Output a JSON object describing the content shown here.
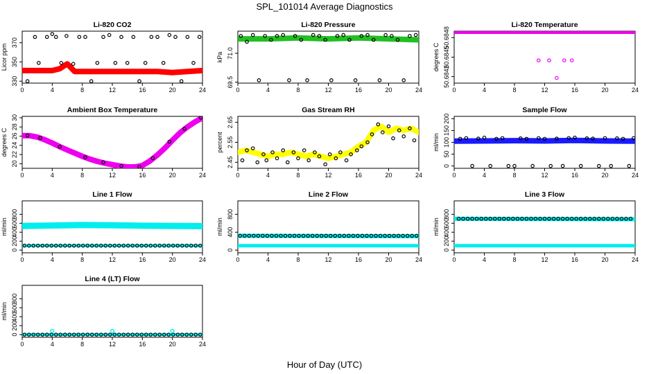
{
  "figure": {
    "title": "SPL_101014  Average Diagnostics",
    "xlabel": "Hour of Day (UTC)"
  },
  "colors": {
    "red": "#ff0000",
    "green": "#22c022",
    "magenta": "#ee00ee",
    "yellow": "#ffff00",
    "blue": "#1a1aff",
    "cyan": "#00eeee",
    "black": "#000000"
  },
  "chart_data": [
    {
      "type": "scatter",
      "title": "Li-820 CO2",
      "ylabel": "Licor ppm",
      "xlim": [
        0,
        24
      ],
      "ylim": [
        328,
        382
      ],
      "xticks": [
        "0",
        "4",
        "8",
        "12",
        "16",
        "20",
        "24"
      ],
      "yticks": [
        "330",
        "350",
        "370"
      ],
      "band": {
        "color": "red",
        "x": [
          0,
          2,
          4,
          5,
          6,
          7,
          8,
          10,
          12,
          14,
          16,
          18,
          20,
          22,
          24
        ],
        "y": [
          341,
          341,
          341,
          343,
          348,
          340,
          340,
          340,
          340,
          340,
          340,
          340,
          339,
          340,
          341
        ]
      },
      "points": {
        "color": "black",
        "x": [
          0.7,
          1.7,
          2.2,
          3.3,
          4.0,
          4.5,
          5.2,
          5.9,
          6.8,
          7.6,
          8.4,
          9.2,
          10.0,
          10.8,
          11.6,
          12.4,
          13.2,
          14.0,
          14.8,
          15.6,
          16.4,
          17.2,
          18.0,
          18.8,
          19.6,
          20.4,
          21.2,
          22.0,
          22.8,
          23.6
        ],
        "y": [
          330,
          376,
          349,
          376,
          379,
          376,
          349,
          377,
          348,
          376,
          376,
          330,
          349,
          376,
          378,
          349,
          376,
          349,
          376,
          330,
          349,
          376,
          376,
          349,
          378,
          376,
          330,
          376,
          349,
          376
        ]
      }
    },
    {
      "type": "scatter",
      "title": "Li-820 Pressure",
      "ylabel": "kPa",
      "xlim": [
        0,
        24
      ],
      "ylim": [
        69.45,
        72.15
      ],
      "xticks": [
        "0",
        "4",
        "8",
        "12",
        "16",
        "20",
        "24"
      ],
      "yticks": [
        "69.5",
        "71.0"
      ],
      "band": {
        "color": "green",
        "x": [
          0,
          4,
          8,
          12,
          16,
          20,
          24
        ],
        "y": [
          71.75,
          71.75,
          71.8,
          71.75,
          71.8,
          71.75,
          71.7
        ]
      },
      "points": {
        "color": "black",
        "x": [
          0.4,
          1.2,
          2.0,
          2.8,
          3.6,
          4.4,
          5.2,
          6.0,
          6.8,
          7.6,
          8.4,
          9.2,
          10.0,
          10.8,
          11.6,
          12.4,
          13.2,
          14.0,
          14.8,
          15.6,
          16.4,
          17.2,
          18.0,
          18.8,
          19.6,
          20.4,
          21.2,
          22.0,
          22.8,
          23.6
        ],
        "y": [
          71.9,
          71.6,
          71.95,
          69.6,
          71.9,
          71.7,
          71.9,
          71.95,
          69.6,
          71.9,
          71.7,
          69.6,
          71.95,
          71.9,
          71.7,
          69.6,
          71.9,
          71.95,
          71.7,
          69.6,
          71.9,
          71.95,
          71.7,
          69.6,
          71.95,
          71.9,
          71.7,
          69.6,
          71.9,
          71.95
        ]
      }
    },
    {
      "type": "scatter",
      "title": "Li-820 Temperature",
      "ylabel": "degrees C",
      "xlim": [
        0,
        24
      ],
      "ylim": [
        50.6841,
        50.6849
      ],
      "xticks": [
        "0",
        "4",
        "8",
        "12",
        "16",
        "20",
        "24"
      ],
      "yticks": [
        "50.6842",
        "50.6845",
        "50.6848"
      ],
      "band": {
        "color": "magenta",
        "x": [
          0,
          24
        ],
        "y": [
          50.6849,
          50.6849
        ]
      },
      "points": {
        "color": "magenta",
        "x": [
          11.2,
          12.6,
          13.6,
          14.6,
          15.6
        ],
        "y": [
          50.68445,
          50.68445,
          50.68418,
          50.68445,
          50.68445
        ]
      }
    },
    {
      "type": "line",
      "title": "Ambient Box Temperature",
      "ylabel": "degrees C",
      "xlim": [
        0,
        24
      ],
      "ylim": [
        19.0,
        30.3
      ],
      "xticks": [
        "0",
        "4",
        "8",
        "12",
        "16",
        "20",
        "24"
      ],
      "yticks": [
        "20",
        "22",
        "24",
        "26",
        "28",
        "30"
      ],
      "band": {
        "color": "magenta",
        "x": [
          0,
          1,
          2,
          3,
          4,
          5,
          6,
          7,
          8,
          9,
          10,
          11,
          12,
          13,
          14,
          15,
          16,
          17,
          18,
          19,
          20,
          21,
          22,
          23,
          24
        ],
        "y": [
          26.1,
          26.1,
          25.8,
          25.2,
          24.5,
          23.7,
          23.0,
          22.3,
          21.6,
          21.0,
          20.5,
          20.1,
          19.8,
          19.5,
          19.3,
          19.3,
          19.6,
          20.6,
          21.9,
          23.4,
          25.1,
          26.7,
          28.0,
          29.1,
          30.0
        ]
      },
      "points": {
        "color": "black",
        "x": [
          0.7,
          2.4,
          5.0,
          8.4,
          10.8,
          13.2,
          15.6,
          17.4,
          19.6,
          21.6,
          23.8
        ],
        "y": [
          26.1,
          25.6,
          23.7,
          21.4,
          20.3,
          19.5,
          19.3,
          21.2,
          24.8,
          27.6,
          30.0
        ]
      }
    },
    {
      "type": "scatter",
      "title": "Gas Stream RH",
      "ylabel": "percent",
      "xlim": [
        0,
        24
      ],
      "ylim": [
        2.42,
        2.68
      ],
      "xticks": [
        "0",
        "4",
        "8",
        "12",
        "16",
        "20",
        "24"
      ],
      "yticks": [
        "2.45",
        "2.55",
        "2.65"
      ],
      "band": {
        "color": "yellow",
        "x": [
          0,
          1,
          2,
          3,
          4,
          5,
          6,
          7,
          8,
          9,
          10,
          11,
          12,
          13,
          14,
          15,
          16,
          17,
          18,
          19,
          20,
          21,
          22,
          23,
          24
        ],
        "y": [
          2.5,
          2.51,
          2.5,
          2.49,
          2.48,
          2.49,
          2.49,
          2.5,
          2.49,
          2.48,
          2.49,
          2.48,
          2.47,
          2.48,
          2.49,
          2.5,
          2.53,
          2.55,
          2.61,
          2.63,
          2.6,
          2.62,
          2.61,
          2.62,
          2.6
        ]
      },
      "points": {
        "color": "black",
        "x": [
          0.6,
          1.2,
          2.0,
          2.6,
          3.4,
          3.8,
          4.6,
          5.2,
          6.0,
          6.6,
          7.4,
          8.0,
          8.8,
          9.4,
          10.2,
          10.8,
          11.6,
          12.2,
          13.0,
          13.6,
          14.4,
          15.0,
          15.8,
          16.4,
          17.2,
          17.8,
          18.6,
          19.2,
          20.0,
          20.6,
          21.4,
          22.0,
          22.8,
          23.4
        ],
        "y": [
          2.46,
          2.51,
          2.52,
          2.45,
          2.49,
          2.46,
          2.5,
          2.47,
          2.51,
          2.45,
          2.5,
          2.47,
          2.51,
          2.46,
          2.5,
          2.48,
          2.44,
          2.49,
          2.47,
          2.5,
          2.46,
          2.49,
          2.51,
          2.53,
          2.55,
          2.59,
          2.64,
          2.6,
          2.63,
          2.57,
          2.61,
          2.58,
          2.62,
          2.56
        ]
      }
    },
    {
      "type": "scatter",
      "title": "Sample Flow",
      "ylabel": "ml/min",
      "xlim": [
        0,
        24
      ],
      "ylim": [
        -10,
        210
      ],
      "xticks": [
        "0",
        "4",
        "8",
        "12",
        "16",
        "20",
        "24"
      ],
      "yticks": [
        "0",
        "50",
        "100",
        "150",
        "200"
      ],
      "band": {
        "color": "blue",
        "x": [
          0,
          4,
          8,
          12,
          16,
          20,
          24
        ],
        "y": [
          105,
          106,
          107,
          106,
          108,
          106,
          105
        ]
      },
      "points": {
        "color": "black",
        "x": [
          0.8,
          1.6,
          2.4,
          3.2,
          4.0,
          4.8,
          5.6,
          6.4,
          7.2,
          8.0,
          8.8,
          9.6,
          10.4,
          11.2,
          12.0,
          12.8,
          13.6,
          14.4,
          15.2,
          16.0,
          16.8,
          17.6,
          18.4,
          19.2,
          20.0,
          20.8,
          21.6,
          22.4,
          23.2,
          23.8
        ],
        "y": [
          115,
          118,
          0,
          116,
          120,
          0,
          115,
          118,
          0,
          0,
          117,
          115,
          0,
          118,
          115,
          0,
          116,
          0,
          118,
          120,
          0,
          117,
          116,
          0,
          118,
          0,
          117,
          115,
          0,
          118
        ]
      }
    },
    {
      "type": "scatter",
      "title": "Line 1 Flow",
      "ylabel": "ml/min",
      "xlim": [
        0,
        24
      ],
      "ylim": [
        -60,
        1100
      ],
      "xticks": [
        "0",
        "4",
        "8",
        "12",
        "16",
        "20",
        "24"
      ],
      "yticks": [
        "0",
        "200",
        "400",
        "600",
        "800"
      ],
      "bands": [
        {
          "color": "cyan",
          "x": [
            0,
            4,
            8,
            12,
            16,
            20,
            24
          ],
          "y": [
            540,
            550,
            560,
            555,
            545,
            540,
            535
          ],
          "width": 9
        },
        {
          "color": "cyan",
          "x": [
            0,
            24
          ],
          "y": [
            100,
            100
          ],
          "width": 4
        }
      ],
      "points": {
        "color": "black",
        "x_start": 0.3,
        "x_step": 0.6,
        "count": 40,
        "y": 100
      }
    },
    {
      "type": "scatter",
      "title": "Line 2 Flow",
      "ylabel": "ml/min",
      "xlim": [
        0,
        24
      ],
      "ylim": [
        -60,
        1100
      ],
      "xticks": [
        "0",
        "4",
        "8",
        "12",
        "16",
        "20",
        "24"
      ],
      "yticks": [
        "0",
        "400",
        "800"
      ],
      "bands": [
        {
          "color": "cyan",
          "x": [
            0,
            24
          ],
          "y": [
            320,
            310
          ],
          "width": 6
        },
        {
          "color": "cyan",
          "x": [
            0,
            24
          ],
          "y": [
            100,
            100
          ],
          "width": 5
        }
      ],
      "points": {
        "color": "black",
        "x_start": 0.3,
        "x_step": 0.6,
        "count": 40,
        "y": 320
      }
    },
    {
      "type": "scatter",
      "title": "Line 3 Flow",
      "ylabel": "ml/min",
      "xlim": [
        0,
        24
      ],
      "ylim": [
        -60,
        1100
      ],
      "xticks": [
        "0",
        "4",
        "8",
        "12",
        "16",
        "20",
        "24"
      ],
      "yticks": [
        "0",
        "200",
        "400",
        "600",
        "800"
      ],
      "bands": [
        {
          "color": "cyan",
          "x": [
            0,
            24
          ],
          "y": [
            700,
            690
          ],
          "width": 6
        },
        {
          "color": "cyan",
          "x": [
            0,
            24
          ],
          "y": [
            100,
            100
          ],
          "width": 5
        }
      ],
      "points": {
        "color": "black",
        "x_start": 0.6,
        "x_step": 0.6,
        "count": 39,
        "y": 700
      }
    },
    {
      "type": "scatter",
      "title": "Line 4 (LT) Flow",
      "ylabel": "ml/min",
      "xlim": [
        0,
        24
      ],
      "ylim": [
        -60,
        1100
      ],
      "xticks": [
        "0",
        "4",
        "8",
        "12",
        "16",
        "20",
        "24"
      ],
      "yticks": [
        "0",
        "200",
        "400",
        "600",
        "800"
      ],
      "bands": [
        {
          "color": "cyan",
          "x": [
            0,
            24
          ],
          "y": [
            0,
            0
          ],
          "width": 4
        }
      ],
      "points": {
        "color": "black",
        "x_start": 0.3,
        "x_step": 0.6,
        "count": 40,
        "y": 0
      },
      "extra_points": {
        "color": "cyan",
        "x": [
          4.0,
          12.0,
          20.0
        ],
        "y": [
          80,
          80,
          80
        ]
      }
    }
  ]
}
